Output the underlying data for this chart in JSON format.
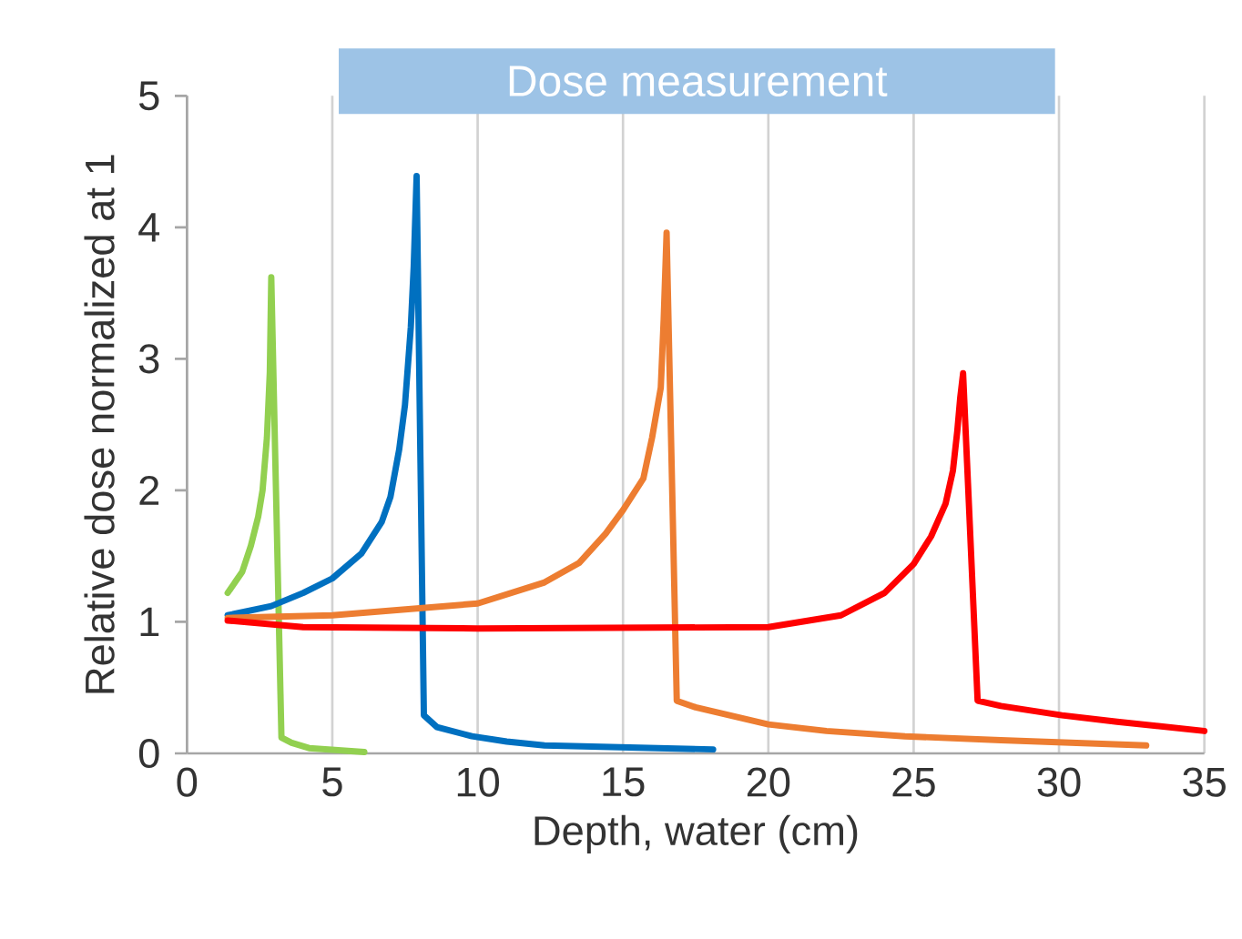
{
  "chart_data": {
    "type": "line",
    "title": "Dose measurement",
    "xlabel": "Depth, water (cm)",
    "ylabel": "Relative dose normalized at 1",
    "xlim": [
      0,
      35
    ],
    "ylim": [
      0,
      5
    ],
    "xticks": [
      0,
      5,
      10,
      15,
      20,
      25,
      30,
      35
    ],
    "yticks": [
      0,
      1,
      2,
      3,
      4,
      5
    ],
    "grid": "x",
    "marker": "none",
    "line_style": "solid",
    "series": [
      {
        "color": "#92d050",
        "x": [
          1.4,
          1.9,
          2.2,
          2.45,
          2.6,
          2.75,
          2.85,
          2.9,
          3.25,
          3.6,
          4.2,
          6.1
        ],
        "values": [
          1.22,
          1.38,
          1.58,
          1.8,
          2.0,
          2.4,
          2.9,
          3.62,
          0.12,
          0.08,
          0.04,
          0.01
        ]
      },
      {
        "color": "#0070c0",
        "x": [
          1.4,
          2.9,
          4.0,
          5.0,
          6.0,
          6.7,
          7.0,
          7.3,
          7.5,
          7.7,
          7.8,
          7.9,
          8.15,
          8.6,
          9.8,
          11.0,
          12.3,
          18.1
        ],
        "values": [
          1.05,
          1.12,
          1.22,
          1.33,
          1.52,
          1.76,
          1.95,
          2.31,
          2.65,
          3.24,
          3.7,
          4.39,
          0.29,
          0.2,
          0.13,
          0.09,
          0.06,
          0.03
        ]
      },
      {
        "color": "#ed7d31",
        "x": [
          1.4,
          5.0,
          10.0,
          12.3,
          13.5,
          14.4,
          15.0,
          15.7,
          16.0,
          16.3,
          16.4,
          16.5,
          16.85,
          17.5,
          20.0,
          22.0,
          24.7,
          28.0,
          33.0
        ],
        "values": [
          1.03,
          1.05,
          1.14,
          1.3,
          1.45,
          1.67,
          1.85,
          2.09,
          2.4,
          2.78,
          3.3,
          3.96,
          0.4,
          0.35,
          0.22,
          0.17,
          0.13,
          0.1,
          0.06
        ]
      },
      {
        "color": "#ff0000",
        "x": [
          1.4,
          4.0,
          10.0,
          20.0,
          22.5,
          24.0,
          25.0,
          25.6,
          26.1,
          26.35,
          26.5,
          26.6,
          26.7,
          27.2,
          28.0,
          30.1,
          32.0,
          35.0
        ],
        "values": [
          1.01,
          0.96,
          0.95,
          0.96,
          1.05,
          1.22,
          1.44,
          1.65,
          1.9,
          2.15,
          2.45,
          2.7,
          2.89,
          0.4,
          0.36,
          0.29,
          0.24,
          0.17
        ]
      }
    ]
  }
}
